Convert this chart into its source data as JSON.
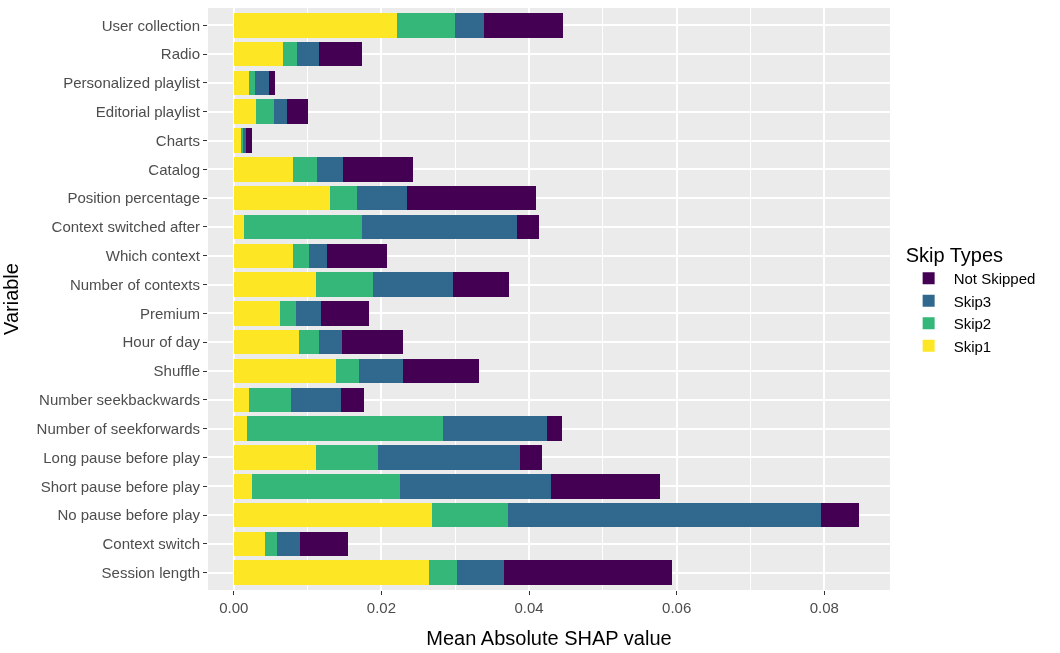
{
  "chart_data": {
    "type": "bar",
    "orientation": "horizontal",
    "stacked": true,
    "xlabel": "Mean Absolute SHAP value",
    "ylabel": "Variable",
    "legend_title": "Skip Types",
    "categories": [
      "User collection",
      "Radio",
      "Personalized playlist",
      "Editorial playlist",
      "Charts",
      "Catalog",
      "Position percentage",
      "Context switched after",
      "Which context",
      "Number of contexts",
      "Premium",
      "Hour of day",
      "Shuffle",
      "Number seekbackwards",
      "Number of seekforwards",
      "Long pause before play",
      "Short pause before play",
      "No pause before play",
      "Context switch",
      "Session length"
    ],
    "series": [
      {
        "name": "Skip1",
        "color": "#fde725",
        "values": [
          0.0221,
          0.0066,
          0.002,
          0.003,
          0.001,
          0.008,
          0.013,
          0.0014,
          0.008,
          0.0111,
          0.0062,
          0.0088,
          0.0139,
          0.002,
          0.0018,
          0.0111,
          0.0024,
          0.0269,
          0.0042,
          0.0265
        ]
      },
      {
        "name": "Skip2",
        "color": "#35b779",
        "values": [
          0.0078,
          0.002,
          0.0008,
          0.0024,
          0.0003,
          0.0032,
          0.0037,
          0.016,
          0.0022,
          0.0078,
          0.0022,
          0.0028,
          0.0031,
          0.0058,
          0.0265,
          0.0084,
          0.0201,
          0.0103,
          0.0016,
          0.0038
        ]
      },
      {
        "name": "Skip3",
        "color": "#31688e",
        "values": [
          0.004,
          0.003,
          0.002,
          0.0018,
          0.0003,
          0.0036,
          0.0068,
          0.021,
          0.0024,
          0.0108,
          0.0034,
          0.003,
          0.0059,
          0.0067,
          0.0141,
          0.0193,
          0.0205,
          0.0423,
          0.0032,
          0.0063
        ]
      },
      {
        "name": "Not Skipped",
        "color": "#440154",
        "values": [
          0.0107,
          0.0057,
          0.0008,
          0.0028,
          0.0008,
          0.0095,
          0.0174,
          0.0029,
          0.0082,
          0.0076,
          0.0065,
          0.0083,
          0.0103,
          0.0031,
          0.002,
          0.003,
          0.0148,
          0.0052,
          0.0064,
          0.0228
        ]
      }
    ],
    "xlim": [
      -0.0035,
      0.0889
    ],
    "xticks": [
      {
        "value": 0,
        "label": "0.00"
      },
      {
        "value": 0.02,
        "label": "0.02"
      },
      {
        "value": 0.04,
        "label": "0.04"
      },
      {
        "value": 0.06,
        "label": "0.06"
      },
      {
        "value": 0.08,
        "label": "0.08"
      }
    ],
    "grid": true,
    "legend": "right"
  }
}
